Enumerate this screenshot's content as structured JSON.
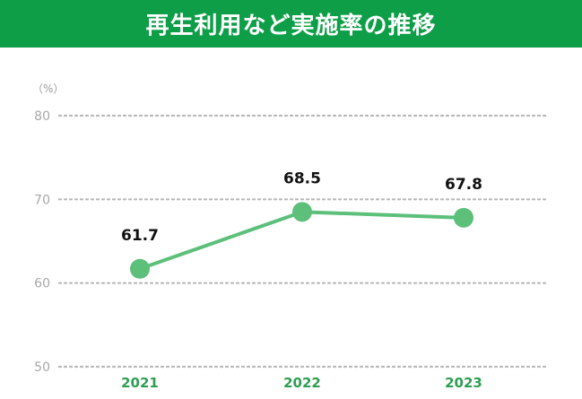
{
  "title": "再生利用など実施率の推移",
  "chart_data": {
    "type": "line",
    "title": "再生利用など実施率の推移",
    "unit_label": "（%）",
    "categories": [
      "2021",
      "2022",
      "2023"
    ],
    "series": [
      {
        "name": "再生利用など実施率",
        "values": [
          61.7,
          68.5,
          67.8
        ]
      }
    ],
    "data_labels": [
      "61.7",
      "68.5",
      "67.8"
    ],
    "yticks": [
      50,
      60,
      70,
      80
    ],
    "ytick_labels": [
      "50",
      "60",
      "70",
      "80"
    ],
    "ylim": [
      50,
      80
    ],
    "grid": true,
    "xlabel": "",
    "ylabel": ""
  },
  "colors": {
    "title_bg": "#0e9e48",
    "line": "#5cbf7a",
    "marker": "#5cbf7a",
    "grid": "#b8b8b8",
    "x_label": "#2e9e52"
  }
}
